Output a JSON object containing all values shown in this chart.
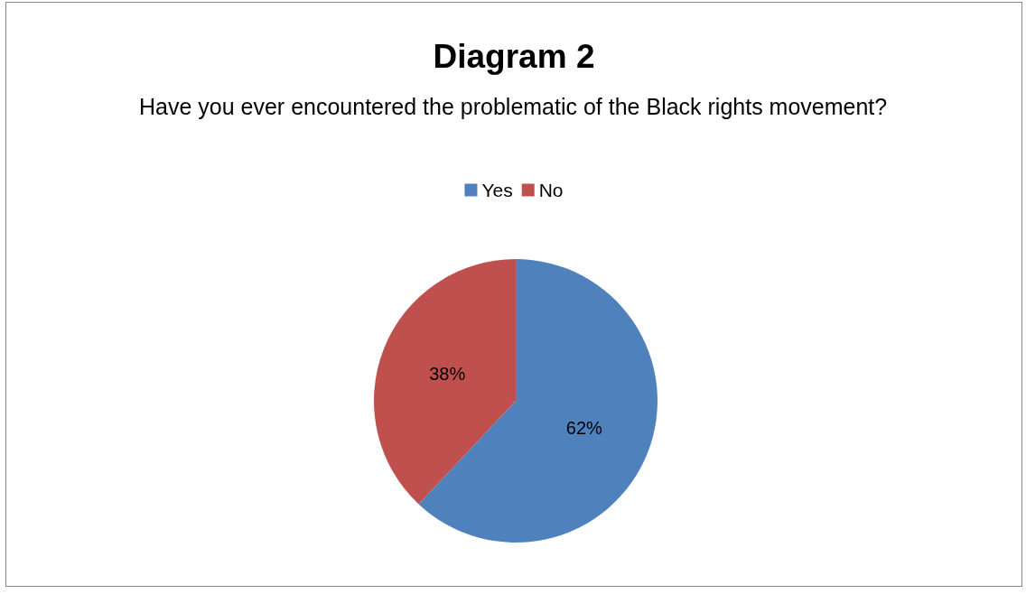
{
  "chart_data": {
    "type": "pie",
    "title": "Diagram 2",
    "subtitle": "Have you ever encountered the problematic of the Black rights movement?",
    "categories": [
      "Yes",
      "No"
    ],
    "values": [
      62,
      38
    ],
    "colors": [
      "#4f81bd",
      "#c0504d"
    ],
    "value_labels": [
      "62%",
      "38%"
    ],
    "legend": "top"
  }
}
